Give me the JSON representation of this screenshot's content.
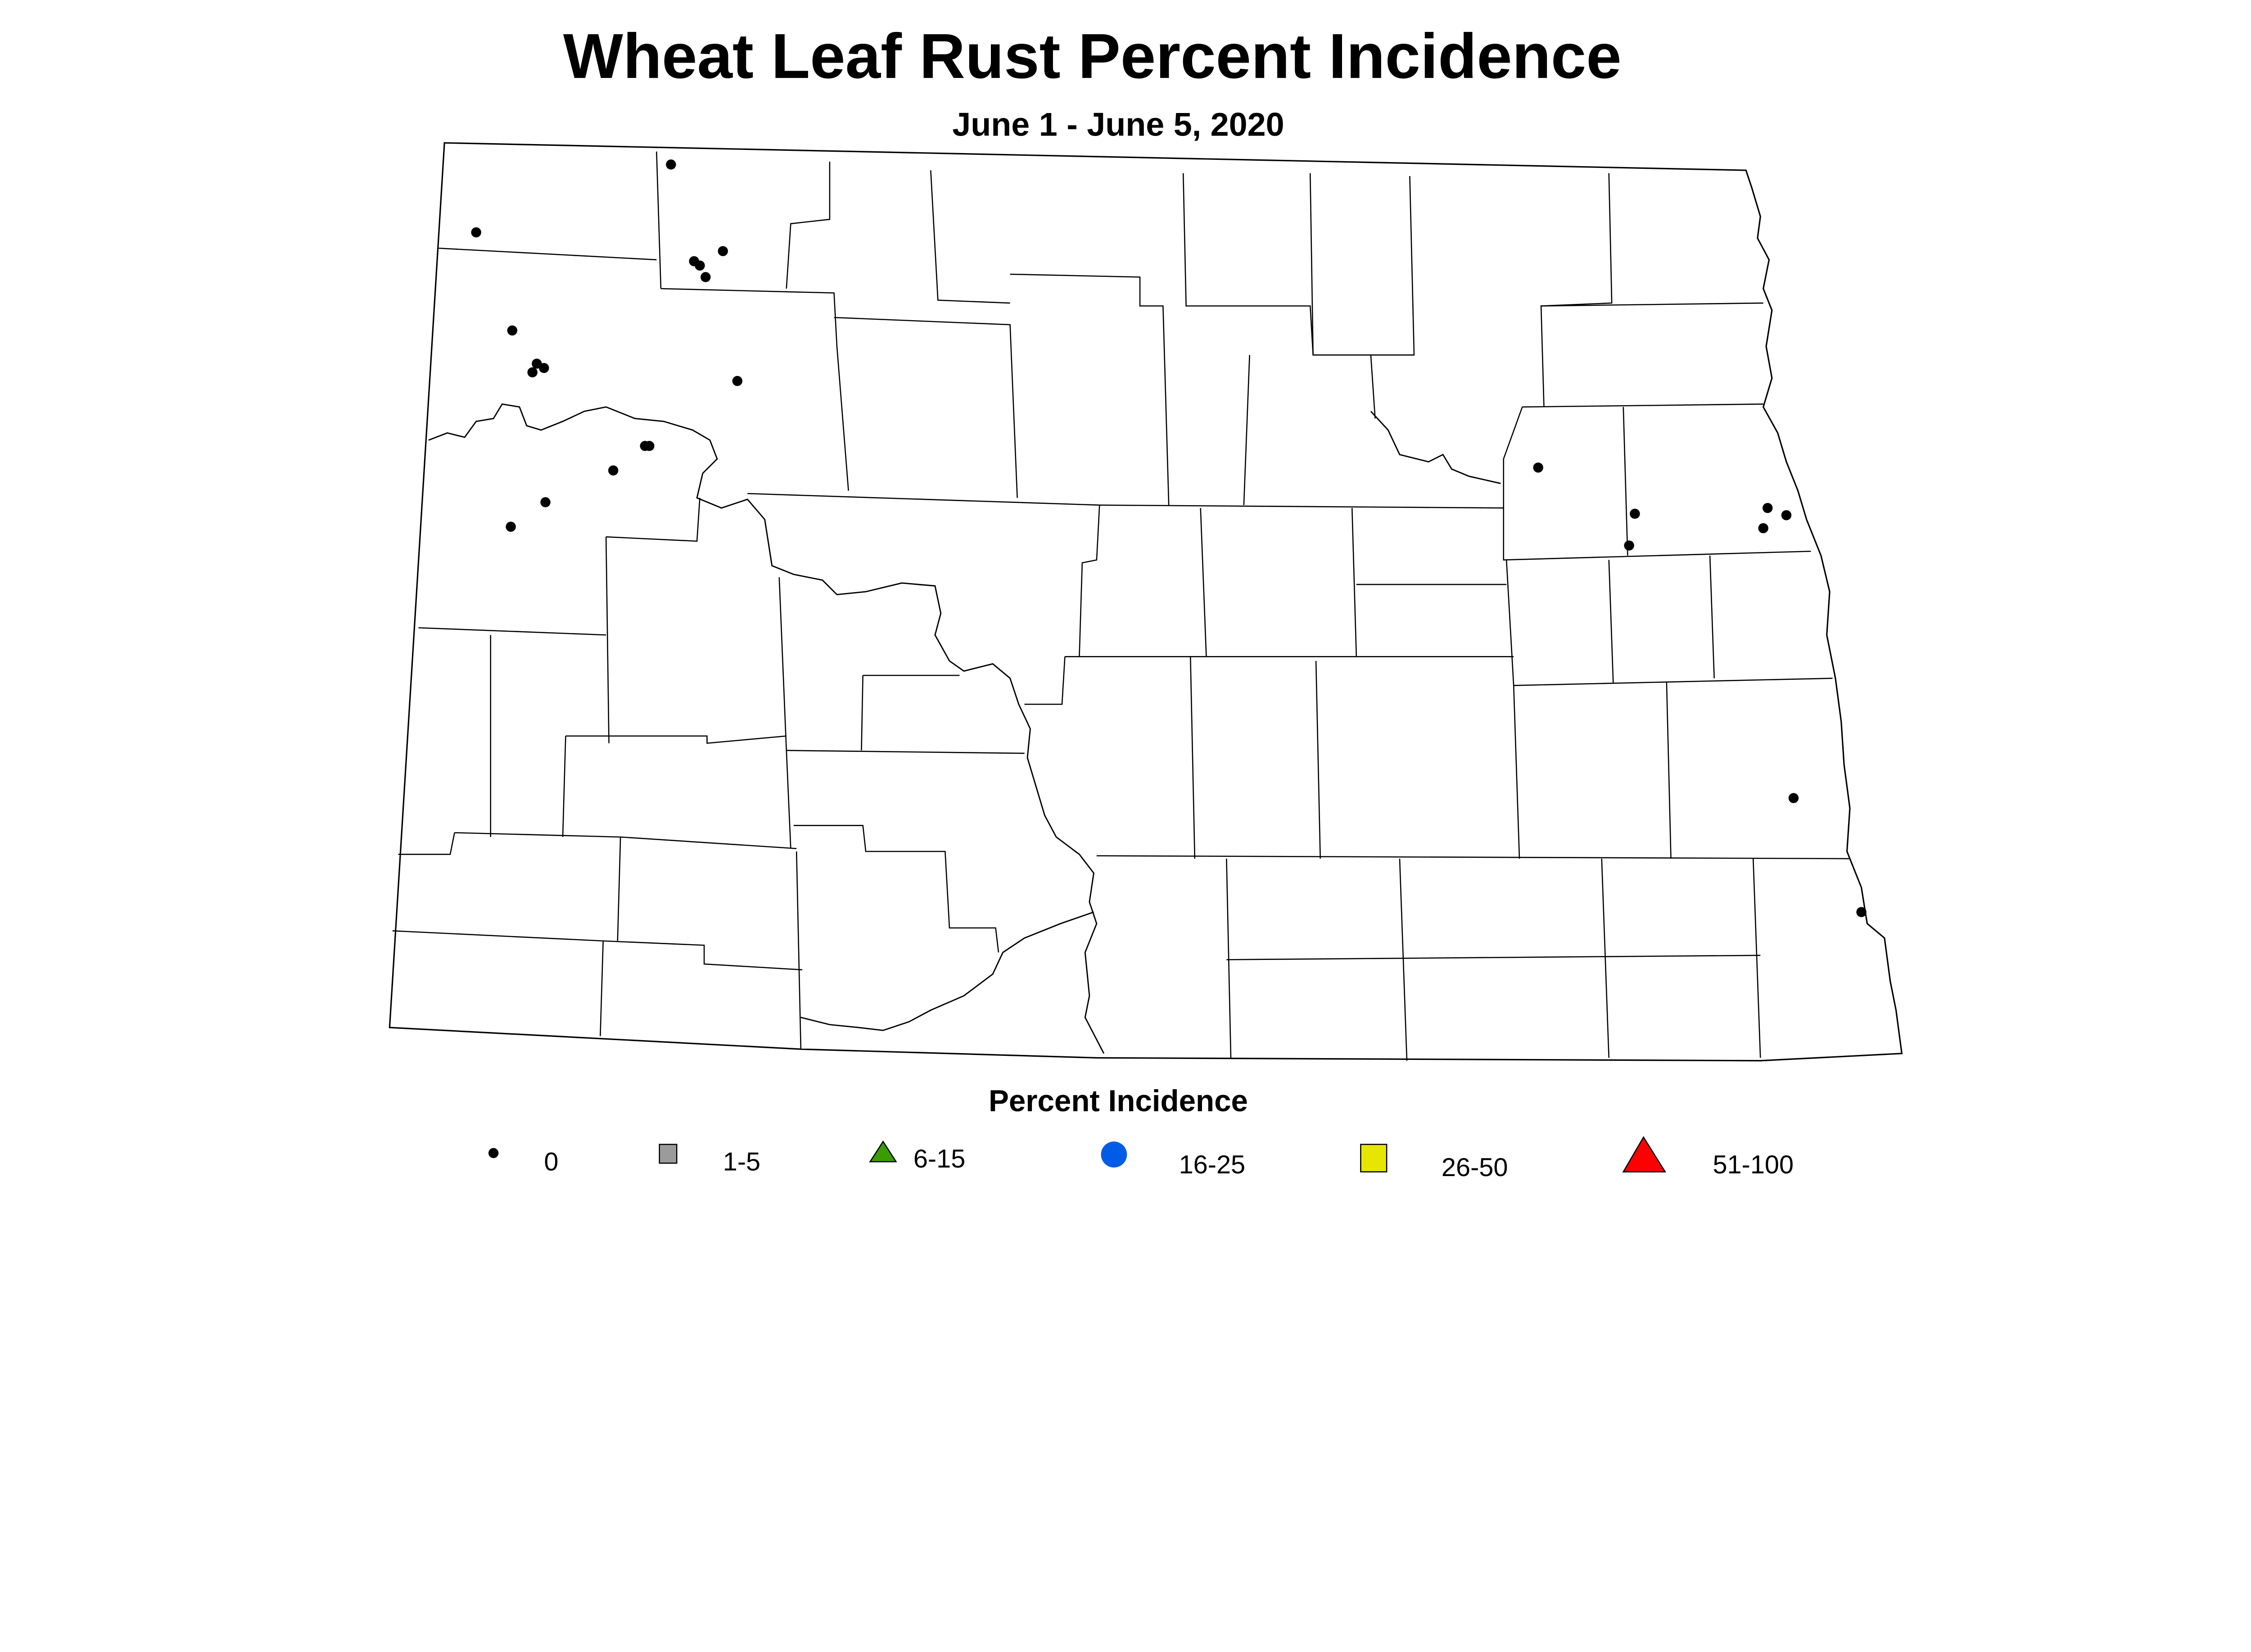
{
  "title": "Wheat Leaf Rust Percent Incidence",
  "subtitle": "June 1 - June 5, 2020",
  "legend": {
    "title": "Percent Incidence",
    "items": [
      {
        "label": "0",
        "symbol": "small-dot",
        "color": "#000000"
      },
      {
        "label": "1-5",
        "symbol": "square",
        "color": "#9b9b9b"
      },
      {
        "label": "6-15",
        "symbol": "triangle",
        "color": "#3a9c00"
      },
      {
        "label": "16-25",
        "symbol": "circle",
        "color": "#005ce6"
      },
      {
        "label": "26-50",
        "symbol": "square",
        "color": "#e6e600"
      },
      {
        "label": "51-100",
        "symbol": "triangle",
        "color": "#ff0000"
      }
    ]
  },
  "observations_category": "0",
  "observation_count": 24
}
